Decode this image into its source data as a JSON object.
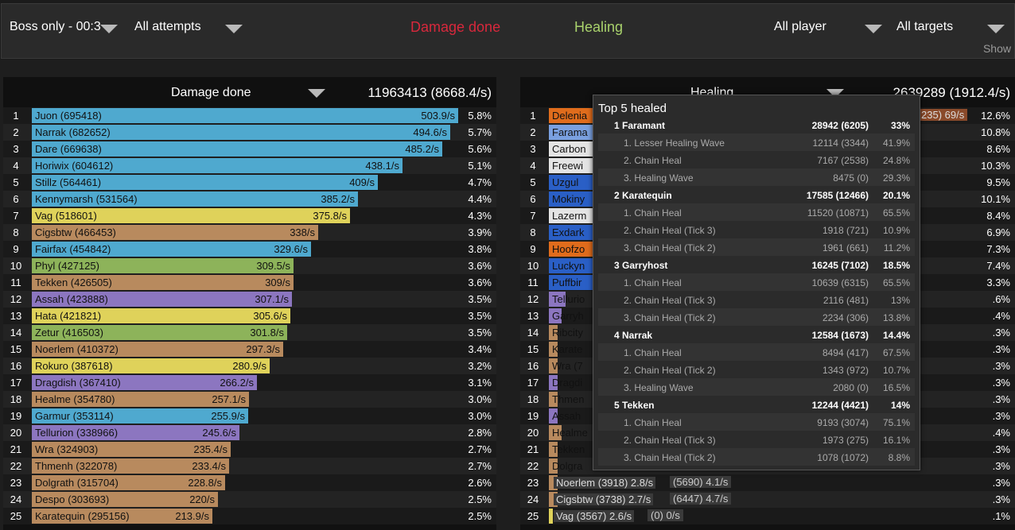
{
  "topbar": {
    "boss_filter": "Boss only - 00:3",
    "attempts_filter": "All attempts",
    "tab_damage": "Damage done",
    "tab_healing": "Healing",
    "player_filter": "All player",
    "target_filter": "All targets",
    "show_link": "Show"
  },
  "colors": {
    "damage_tab": "#d8283c",
    "healing_tab": "#a9d26c",
    "shaman": "#4fa9cf",
    "rogue": "#dfd25a",
    "warrior": "#b88a5e",
    "hunter": "#8db35a",
    "warlock": "#8c76c0",
    "druid": "#e06c1c",
    "priest": "#e4e4e4",
    "paladin_blue": "#2a5fc6"
  },
  "damage": {
    "title": "Damage done",
    "total": "11963413 (8668.4/s)",
    "max_value": 695418,
    "rows": [
      {
        "rank": "1",
        "name": "Juon (695418)",
        "value": 695418,
        "rate": "503.9/s",
        "pct": "5.8%",
        "color": "#4fa9cf"
      },
      {
        "rank": "2",
        "name": "Narrak (682652)",
        "value": 682652,
        "rate": "494.6/s",
        "pct": "5.7%",
        "color": "#4fa9cf"
      },
      {
        "rank": "3",
        "name": "Dare (669638)",
        "value": 669638,
        "rate": "485.2/s",
        "pct": "5.6%",
        "color": "#4fa9cf"
      },
      {
        "rank": "4",
        "name": "Horiwix (604612)",
        "value": 604612,
        "rate": "438.1/s",
        "pct": "5.1%",
        "color": "#4fa9cf"
      },
      {
        "rank": "5",
        "name": "Stillz (564461)",
        "value": 564461,
        "rate": "409/s",
        "pct": "4.7%",
        "color": "#4fa9cf"
      },
      {
        "rank": "6",
        "name": "Kennymarsh (531564)",
        "value": 531564,
        "rate": "385.2/s",
        "pct": "4.4%",
        "color": "#4fa9cf"
      },
      {
        "rank": "7",
        "name": "Vag (518601)",
        "value": 518601,
        "rate": "375.8/s",
        "pct": "4.3%",
        "color": "#dfd25a"
      },
      {
        "rank": "8",
        "name": "Cigsbtw (466453)",
        "value": 466453,
        "rate": "338/s",
        "pct": "3.9%",
        "color": "#b88a5e"
      },
      {
        "rank": "9",
        "name": "Fairfax (454842)",
        "value": 454842,
        "rate": "329.6/s",
        "pct": "3.8%",
        "color": "#4fa9cf"
      },
      {
        "rank": "10",
        "name": "Phyl (427125)",
        "value": 427125,
        "rate": "309.5/s",
        "pct": "3.6%",
        "color": "#8db35a"
      },
      {
        "rank": "11",
        "name": "Tekken (426505)",
        "value": 426505,
        "rate": "309/s",
        "pct": "3.6%",
        "color": "#b88a5e"
      },
      {
        "rank": "12",
        "name": "Assah (423888)",
        "value": 423888,
        "rate": "307.1/s",
        "pct": "3.5%",
        "color": "#8c76c0"
      },
      {
        "rank": "13",
        "name": "Hata (421821)",
        "value": 421821,
        "rate": "305.6/s",
        "pct": "3.5%",
        "color": "#dfd25a"
      },
      {
        "rank": "14",
        "name": "Zetur (416503)",
        "value": 416503,
        "rate": "301.8/s",
        "pct": "3.5%",
        "color": "#8db35a"
      },
      {
        "rank": "15",
        "name": "Noerlem (410372)",
        "value": 410372,
        "rate": "297.3/s",
        "pct": "3.4%",
        "color": "#b88a5e"
      },
      {
        "rank": "16",
        "name": "Rokuro (387618)",
        "value": 387618,
        "rate": "280.9/s",
        "pct": "3.2%",
        "color": "#dfd25a"
      },
      {
        "rank": "17",
        "name": "Dragdish (367410)",
        "value": 367410,
        "rate": "266.2/s",
        "pct": "3.1%",
        "color": "#8c76c0"
      },
      {
        "rank": "18",
        "name": "Healme (354780)",
        "value": 354780,
        "rate": "257.1/s",
        "pct": "3.0%",
        "color": "#b88a5e"
      },
      {
        "rank": "19",
        "name": "Garmur (353114)",
        "value": 353114,
        "rate": "255.9/s",
        "pct": "3.0%",
        "color": "#4fa9cf"
      },
      {
        "rank": "20",
        "name": "Tellurion (338966)",
        "value": 338966,
        "rate": "245.6/s",
        "pct": "2.8%",
        "color": "#8c76c0"
      },
      {
        "rank": "21",
        "name": "Wra (324903)",
        "value": 324903,
        "rate": "235.4/s",
        "pct": "2.7%",
        "color": "#b88a5e"
      },
      {
        "rank": "22",
        "name": "Thmenh (322078)",
        "value": 322078,
        "rate": "233.4/s",
        "pct": "2.7%",
        "color": "#b88a5e"
      },
      {
        "rank": "23",
        "name": "Dolgrath (315704)",
        "value": 315704,
        "rate": "228.8/s",
        "pct": "2.6%",
        "color": "#b88a5e"
      },
      {
        "rank": "24",
        "name": "Despo (303693)",
        "value": 303693,
        "rate": "220/s",
        "pct": "2.5%",
        "color": "#b88a5e"
      },
      {
        "rank": "25",
        "name": "Karatequin (295156)",
        "value": 295156,
        "rate": "213.9/s",
        "pct": "2.5%",
        "color": "#b88a5e"
      }
    ]
  },
  "healing": {
    "title": "Healing",
    "total": "2639289 (1912.4/s)",
    "rows": [
      {
        "rank": "1",
        "name": "Delenia",
        "extra": "235) 69/s",
        "fill": 0.84,
        "pct": "12.6%",
        "color": "#e06c1c"
      },
      {
        "rank": "2",
        "name": "Farama",
        "extra": "",
        "fill": 0.72,
        "pct": "10.8%",
        "color": "#7aa0e0"
      },
      {
        "rank": "3",
        "name": "Carbon",
        "extra": "",
        "fill": 0.6,
        "pct": "8.6%",
        "color": "#e4e4e4"
      },
      {
        "rank": "4",
        "name": "Freewi",
        "extra": "",
        "fill": 0.7,
        "pct": "10.3%",
        "color": "#e4e4e4"
      },
      {
        "rank": "5",
        "name": "Uzgul",
        "extra": "",
        "fill": 0.64,
        "pct": "9.5%",
        "color": "#2a5fc6"
      },
      {
        "rank": "6",
        "name": "Mokiny",
        "extra": "",
        "fill": 0.68,
        "pct": "10.1%",
        "color": "#2a5fc6"
      },
      {
        "rank": "7",
        "name": "Lazerm",
        "extra": "",
        "fill": 0.6,
        "pct": "8.4%",
        "color": "#e4e4e4"
      },
      {
        "rank": "8",
        "name": "Exdark",
        "extra": "",
        "fill": 0.5,
        "pct": "6.9%",
        "color": "#2a5fc6"
      },
      {
        "rank": "9",
        "name": "Hoofzo",
        "extra": "",
        "fill": 0.52,
        "pct": "7.3%",
        "color": "#e06c1c"
      },
      {
        "rank": "10",
        "name": "Luckyn",
        "extra": "",
        "fill": 0.52,
        "pct": "7.4%",
        "color": "#2a5fc6"
      },
      {
        "rank": "11",
        "name": "Puffbir",
        "extra": "",
        "fill": 0.3,
        "pct": "3.3%",
        "color": "#2a5fc6"
      },
      {
        "rank": "12",
        "name": "Tellurio",
        "extra": "",
        "fill": 0.04,
        "pct": ".6%",
        "color": "#8c76c0"
      },
      {
        "rank": "13",
        "name": "Garryh",
        "extra": "",
        "fill": 0.03,
        "pct": ".4%",
        "color": "#8c76c0"
      },
      {
        "rank": "14",
        "name": "Ribcity",
        "extra": "",
        "fill": 0.02,
        "pct": ".3%",
        "color": "#b88a5e"
      },
      {
        "rank": "15",
        "name": "Karate",
        "extra": "",
        "fill": 0.02,
        "pct": ".3%",
        "color": "#b88a5e"
      },
      {
        "rank": "16",
        "name": "Wra (7",
        "extra": "",
        "fill": 0.02,
        "pct": ".3%",
        "color": "#b88a5e"
      },
      {
        "rank": "17",
        "name": "Dragdi",
        "extra": "",
        "fill": 0.02,
        "pct": ".3%",
        "color": "#8c76c0"
      },
      {
        "rank": "18",
        "name": "Thmen",
        "extra": "",
        "fill": 0.02,
        "pct": ".3%",
        "color": "#b88a5e"
      },
      {
        "rank": "19",
        "name": "Assah",
        "extra": "",
        "fill": 0.02,
        "pct": ".3%",
        "color": "#8c76c0"
      },
      {
        "rank": "20",
        "name": "Healme",
        "extra": "",
        "fill": 0.03,
        "pct": ".4%",
        "color": "#b88a5e"
      },
      {
        "rank": "21",
        "name": "Tekken",
        "extra": "",
        "fill": 0.02,
        "pct": ".3%",
        "color": "#b88a5e"
      },
      {
        "rank": "22",
        "name": "Dolgra",
        "extra": "",
        "fill": 0.02,
        "pct": ".3%",
        "color": "#b88a5e"
      },
      {
        "rank": "23",
        "name": "Noerlem (3918)  2.8/s",
        "extra": "(5690) 4.1/s",
        "fill": 0.02,
        "pct": ".3%",
        "color": "#b88a5e"
      },
      {
        "rank": "24",
        "name": "Cigsbtw (3738)  2.7/s",
        "extra": "(6447) 4.7/s",
        "fill": 0.02,
        "pct": ".3%",
        "color": "#b88a5e"
      },
      {
        "rank": "25",
        "name": "Vag (3567)  2.6/s",
        "extra": "(0) 0/s",
        "fill": 0.01,
        "pct": ".1%",
        "color": "#dfd25a"
      }
    ]
  },
  "tooltip": {
    "title": "Top 5 healed",
    "rows": [
      {
        "type": "head",
        "label": "1  Faramant",
        "value": "28942 (6205)",
        "pct": "33%"
      },
      {
        "type": "sub",
        "label": "1. Lesser Healing Wave",
        "value": "12114 (3344)",
        "pct": "41.9%"
      },
      {
        "type": "sub",
        "label": "2. Chain Heal",
        "value": "7167 (2538)",
        "pct": "24.8%"
      },
      {
        "type": "sub",
        "label": "3. Healing Wave",
        "value": "8475 (0)",
        "pct": "29.3%"
      },
      {
        "type": "head",
        "label": "2  Karatequin",
        "value": "17585 (12466)",
        "pct": "20.1%"
      },
      {
        "type": "sub",
        "label": "1. Chain Heal",
        "value": "11520 (10871)",
        "pct": "65.5%"
      },
      {
        "type": "sub",
        "label": "2. Chain Heal (Tick 3)",
        "value": "1918 (721)",
        "pct": "10.9%"
      },
      {
        "type": "sub",
        "label": "3. Chain Heal (Tick 2)",
        "value": "1961 (661)",
        "pct": "11.2%"
      },
      {
        "type": "head",
        "label": "3  Garryhost",
        "value": "16245 (7102)",
        "pct": "18.5%"
      },
      {
        "type": "sub",
        "label": "1. Chain Heal",
        "value": "10639 (6315)",
        "pct": "65.5%"
      },
      {
        "type": "sub",
        "label": "2. Chain Heal (Tick 3)",
        "value": "2116 (481)",
        "pct": "13%"
      },
      {
        "type": "sub",
        "label": "3. Chain Heal (Tick 2)",
        "value": "2234 (306)",
        "pct": "13.8%"
      },
      {
        "type": "head",
        "label": "4  Narrak",
        "value": "12584 (1673)",
        "pct": "14.4%"
      },
      {
        "type": "sub",
        "label": "1. Chain Heal",
        "value": "8494 (417)",
        "pct": "67.5%"
      },
      {
        "type": "sub",
        "label": "2. Chain Heal (Tick 2)",
        "value": "1343 (972)",
        "pct": "10.7%"
      },
      {
        "type": "sub",
        "label": "3. Healing Wave",
        "value": "2080 (0)",
        "pct": "16.5%"
      },
      {
        "type": "head",
        "label": "5  Tekken",
        "value": "12244 (4421)",
        "pct": "14%"
      },
      {
        "type": "sub",
        "label": "1. Chain Heal",
        "value": "9193 (3074)",
        "pct": "75.1%"
      },
      {
        "type": "sub",
        "label": "2. Chain Heal (Tick 3)",
        "value": "1973 (275)",
        "pct": "16.1%"
      },
      {
        "type": "sub",
        "label": "3. Chain Heal (Tick 2)",
        "value": "1078 (1072)",
        "pct": "8.8%"
      }
    ]
  }
}
